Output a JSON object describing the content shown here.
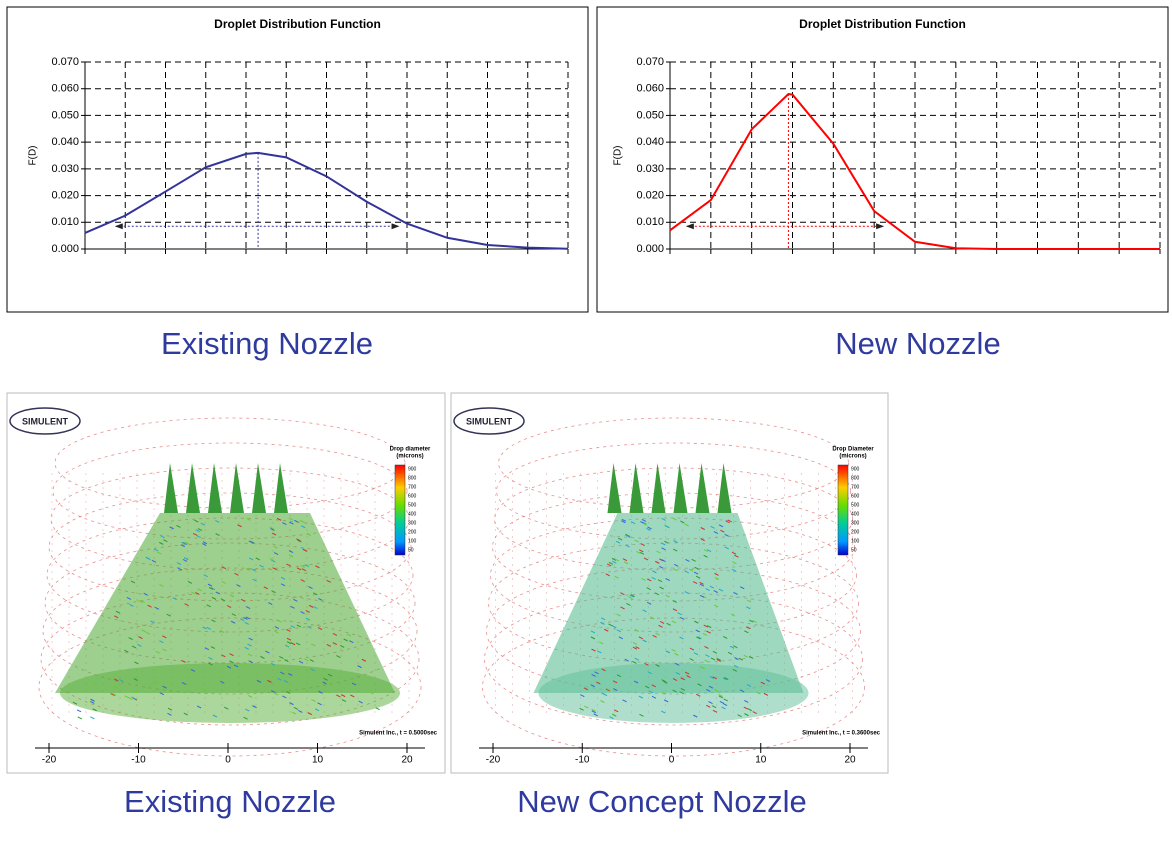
{
  "chart_data": [
    {
      "type": "line",
      "title": "Droplet Distribution Function",
      "y_label": "F(D)",
      "x": [
        0,
        1,
        2,
        3,
        4,
        4.3,
        5,
        6,
        7,
        8,
        9,
        10,
        11,
        12
      ],
      "values": [
        0.006,
        0.0125,
        0.0215,
        0.0306,
        0.0356,
        0.036,
        0.0343,
        0.0272,
        0.0177,
        0.0095,
        0.0042,
        0.0015,
        0.0005,
        0.0001
      ],
      "color": "#333399",
      "xlim": [
        0,
        12
      ],
      "xticks": [
        0,
        1,
        2,
        3,
        4,
        5,
        6,
        7,
        8,
        9,
        10,
        11,
        12
      ],
      "ylim": [
        0,
        0.07
      ],
      "yticks": [
        {
          "value": 0,
          "label": "0.000"
        },
        {
          "value": 0.01,
          "label": "0.010"
        },
        {
          "value": 0.02,
          "label": "0.020"
        },
        {
          "value": 0.03,
          "label": "0.030"
        },
        {
          "value": 0.04,
          "label": "0.040"
        },
        {
          "value": 0.05,
          "label": "0.050"
        },
        {
          "value": 0.06,
          "label": "0.060"
        },
        {
          "value": 0.07,
          "label": "0.070"
        }
      ],
      "grid": true
    },
    {
      "type": "line",
      "title": "Droplet Distribution Function",
      "y_label": "F(D)",
      "x": [
        0,
        1,
        2,
        2.9,
        3,
        4,
        5,
        6,
        7,
        8,
        9,
        10,
        11,
        12
      ],
      "values": [
        0.007,
        0.0183,
        0.0448,
        0.058,
        0.0578,
        0.0394,
        0.0142,
        0.0027,
        0.0003,
        0,
        0,
        0,
        0,
        0
      ],
      "color": "#ff0000",
      "xlim": [
        0,
        12
      ],
      "xticks": [
        0,
        1,
        2,
        3,
        4,
        5,
        6,
        7,
        8,
        9,
        10,
        11,
        12
      ],
      "ylim": [
        0,
        0.07
      ],
      "yticks": [
        {
          "value": 0,
          "label": "0.000"
        },
        {
          "value": 0.01,
          "label": "0.010"
        },
        {
          "value": 0.02,
          "label": "0.020"
        },
        {
          "value": 0.03,
          "label": "0.030"
        },
        {
          "value": 0.04,
          "label": "0.040"
        },
        {
          "value": 0.05,
          "label": "0.050"
        },
        {
          "value": 0.06,
          "label": "0.060"
        },
        {
          "value": 0.07,
          "label": "0.070"
        }
      ],
      "grid": true
    }
  ],
  "captions": [
    "Existing Nozzle",
    "New Nozzle",
    "Existing Nozzle",
    "New Concept Nozzle"
  ],
  "simulations": [
    {
      "logo": "SIMULENT",
      "legend_title": [
        "Drop diameter",
        "(microns)"
      ],
      "legend_values": [
        900,
        800,
        700,
        600,
        500,
        400,
        300,
        200,
        100,
        50
      ],
      "stamp": "Simulent Inc., t = 0.5000sec",
      "axis_ticks": [
        -20,
        -10,
        0,
        10,
        20
      ]
    },
    {
      "logo": "SIMULENT",
      "legend_title": [
        "Drop Diameter",
        "(microns)"
      ],
      "legend_values": [
        900,
        800,
        700,
        600,
        500,
        400,
        300,
        200,
        100,
        50
      ],
      "stamp": "Simulent Inc., t = 0.3600sec",
      "axis_ticks": [
        -20,
        -10,
        0,
        10,
        20
      ]
    }
  ]
}
